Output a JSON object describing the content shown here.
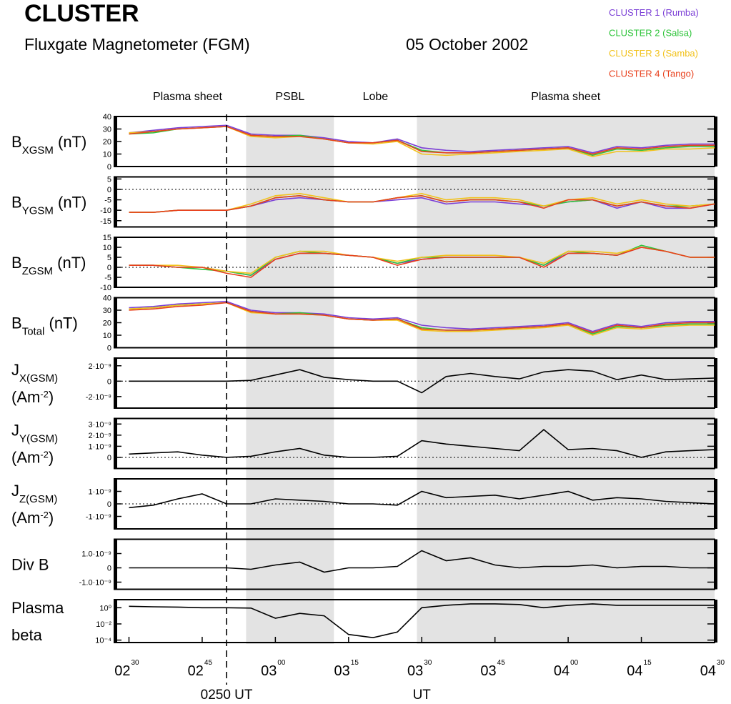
{
  "title": "CLUSTER",
  "subtitle": "Fluxgate Magnetometer (FGM)",
  "date": "05 October 2002",
  "x": [
    "02:30",
    "02:35",
    "02:40",
    "02:45",
    "02:50",
    "02:55",
    "03:00",
    "03:05",
    "03:10",
    "03:15",
    "03:20",
    "03:25",
    "03:30",
    "03:35",
    "03:40",
    "03:45",
    "03:50",
    "03:55",
    "04:00",
    "04:05",
    "04:10",
    "04:15",
    "04:20",
    "04:25",
    "04:30"
  ],
  "xlim": [
    "02:27",
    "04:30"
  ],
  "xticks": [
    {
      "value": "02:30",
      "label": [
        "02",
        "30"
      ]
    },
    {
      "value": "02:45",
      "label": [
        "02",
        "45"
      ]
    },
    {
      "value": "03:00",
      "label": [
        "03",
        "00"
      ]
    },
    {
      "value": "03:15",
      "label": [
        "03",
        "15"
      ]
    },
    {
      "value": "03:30",
      "label": [
        "03",
        "30"
      ]
    },
    {
      "value": "03:45",
      "label": [
        "03",
        "45"
      ]
    },
    {
      "value": "04:00",
      "label": [
        "04",
        "00"
      ]
    },
    {
      "value": "04:15",
      "label": [
        "04",
        "15"
      ]
    },
    {
      "value": "04:30",
      "label": [
        "04",
        "30"
      ]
    }
  ],
  "regions": [
    {
      "label": "Plasma sheet",
      "from": "02:30",
      "to": "02:54",
      "shaded": false
    },
    {
      "label": "PSBL",
      "from": "02:54",
      "to": "03:12",
      "shaded": true
    },
    {
      "label": "Lobe",
      "from": "03:12",
      "to": "03:29",
      "shaded": false
    },
    {
      "label": "Plasma sheet",
      "from": "03:29",
      "to": "04:30",
      "shaded": true
    }
  ],
  "marker": {
    "x": "02:50",
    "label": "0250 UT"
  },
  "ut_marker": {
    "x": "03:30",
    "label": "UT"
  },
  "chart_data": [
    {
      "type": "line",
      "ylabel": [
        [
          {
            "text": "B"
          },
          {
            "text": "XGSM",
            "shift": "sub"
          },
          {
            "text": " (nT)"
          }
        ]
      ],
      "ylim": [
        0,
        40
      ],
      "yticks": [
        0,
        10,
        20,
        30,
        40
      ],
      "zero_line": false,
      "log": false,
      "series": [
        {
          "name": "CLUSTER 1 (Rumba)",
          "color": "#7b3fd6",
          "values": [
            27,
            29,
            31,
            32,
            33,
            26,
            25,
            25,
            23,
            20,
            19,
            22,
            15,
            13,
            12,
            13,
            14,
            15,
            16,
            11,
            16,
            15,
            17,
            18,
            18
          ]
        },
        {
          "name": "CLUSTER 2 (Salsa)",
          "color": "#2ec43a",
          "values": [
            26,
            27,
            30,
            31,
            32,
            25,
            24,
            25,
            22,
            19,
            19,
            21,
            13,
            11,
            11,
            12,
            13,
            14,
            15,
            9,
            14,
            13,
            15,
            16,
            16
          ]
        },
        {
          "name": "CLUSTER 3 (Samba)",
          "color": "#f2c21b",
          "values": [
            27,
            28,
            30,
            31,
            32,
            24,
            23,
            24,
            22,
            19,
            18,
            20,
            10,
            9,
            10,
            11,
            12,
            13,
            14,
            8,
            12,
            12,
            14,
            14,
            15
          ]
        },
        {
          "name": "CLUSTER 4 (Tango)",
          "color": "#e8401c",
          "values": [
            26,
            28,
            30,
            31,
            32,
            25,
            24,
            24,
            22,
            19,
            19,
            21,
            12,
            11,
            11,
            12,
            13,
            14,
            15,
            10,
            15,
            14,
            16,
            17,
            17
          ]
        }
      ]
    },
    {
      "type": "line",
      "ylabel": [
        [
          {
            "text": "B"
          },
          {
            "text": "YGSM",
            "shift": "sub"
          },
          {
            "text": " (nT)"
          }
        ]
      ],
      "ylim": [
        -18,
        6
      ],
      "yticks": [
        -15,
        -10,
        -5,
        0,
        5
      ],
      "zero_line": true,
      "log": false,
      "series": [
        {
          "color": "#7b3fd6",
          "values": [
            -11,
            -11,
            -10,
            -10,
            -10,
            -8,
            -5,
            -4,
            -5,
            -6,
            -6,
            -5,
            -4,
            -7,
            -6,
            -6,
            -7,
            -8,
            -6,
            -5,
            -9,
            -6,
            -9,
            -9,
            -7
          ]
        },
        {
          "color": "#2ec43a",
          "values": [
            -11,
            -11,
            -10,
            -10,
            -10,
            -8,
            -4,
            -3,
            -5,
            -6,
            -6,
            -4,
            -3,
            -6,
            -5,
            -5,
            -6,
            -8,
            -6,
            -5,
            -8,
            -6,
            -8,
            -8,
            -7
          ]
        },
        {
          "color": "#f2c21b",
          "values": [
            -11,
            -11,
            -10,
            -10,
            -10,
            -7,
            -3,
            -2,
            -4,
            -6,
            -6,
            -4,
            -2,
            -5,
            -4,
            -4,
            -5,
            -8,
            -5,
            -4,
            -7,
            -5,
            -7,
            -8,
            -7
          ]
        },
        {
          "color": "#e8401c",
          "values": [
            -11,
            -11,
            -10,
            -10,
            -10,
            -8,
            -4,
            -3,
            -5,
            -6,
            -6,
            -4,
            -3,
            -6,
            -5,
            -5,
            -6,
            -9,
            -5,
            -5,
            -8,
            -6,
            -8,
            -9,
            -7
          ]
        }
      ]
    },
    {
      "type": "line",
      "ylabel": [
        [
          {
            "text": "B"
          },
          {
            "text": "ZGSM",
            "shift": "sub"
          },
          {
            "text": " (nT)"
          }
        ]
      ],
      "ylim": [
        -10,
        15
      ],
      "yticks": [
        -10,
        -5,
        0,
        5,
        10,
        15
      ],
      "zero_line": true,
      "log": false,
      "series": [
        {
          "color": "#7b3fd6",
          "values": [
            1,
            1,
            0,
            0,
            -2,
            -4,
            4,
            7,
            7,
            6,
            5,
            2,
            4,
            5,
            5,
            5,
            5,
            1,
            7,
            7,
            6,
            10,
            8,
            5,
            5
          ]
        },
        {
          "color": "#2ec43a",
          "values": [
            1,
            1,
            0,
            -1,
            -2,
            -4,
            5,
            8,
            7,
            6,
            5,
            2,
            5,
            5,
            5,
            5,
            5,
            1,
            8,
            7,
            6,
            11,
            8,
            5,
            5
          ]
        },
        {
          "color": "#f2c21b",
          "values": [
            1,
            1,
            1,
            0,
            -2,
            -3,
            5,
            8,
            8,
            6,
            5,
            3,
            5,
            6,
            6,
            6,
            5,
            2,
            8,
            8,
            7,
            10,
            8,
            5,
            5
          ]
        },
        {
          "color": "#e8401c",
          "values": [
            1,
            1,
            0,
            0,
            -3,
            -5,
            4,
            7,
            7,
            6,
            5,
            1,
            4,
            5,
            5,
            5,
            5,
            0,
            7,
            7,
            6,
            10,
            8,
            5,
            5
          ]
        }
      ]
    },
    {
      "type": "line",
      "ylabel": [
        [
          {
            "text": "B"
          },
          {
            "text": "Total",
            "shift": "sub"
          },
          {
            "text": " (nT)"
          }
        ]
      ],
      "ylim": [
        0,
        40
      ],
      "yticks": [
        0,
        10,
        20,
        30,
        40
      ],
      "zero_line": false,
      "log": false,
      "series": [
        {
          "color": "#7b3fd6",
          "values": [
            32,
            33,
            35,
            36,
            37,
            30,
            28,
            28,
            27,
            24,
            23,
            24,
            18,
            16,
            15,
            16,
            17,
            18,
            20,
            13,
            19,
            17,
            20,
            21,
            21
          ]
        },
        {
          "color": "#2ec43a",
          "values": [
            31,
            32,
            34,
            35,
            36,
            29,
            27,
            28,
            26,
            23,
            22,
            23,
            16,
            14,
            14,
            15,
            16,
            17,
            19,
            11,
            17,
            16,
            18,
            19,
            19
          ]
        },
        {
          "color": "#f2c21b",
          "values": [
            31,
            32,
            34,
            35,
            36,
            28,
            27,
            27,
            26,
            23,
            22,
            22,
            14,
            13,
            13,
            14,
            15,
            16,
            18,
            10,
            16,
            15,
            17,
            18,
            18
          ]
        },
        {
          "color": "#e8401c",
          "values": [
            30,
            31,
            33,
            34,
            36,
            29,
            27,
            27,
            26,
            23,
            22,
            23,
            15,
            14,
            14,
            15,
            16,
            17,
            19,
            12,
            18,
            16,
            19,
            20,
            20
          ]
        }
      ]
    },
    {
      "type": "line",
      "ylabel": [
        [
          {
            "text": "J"
          },
          {
            "text": "X(GSM)",
            "shift": "sub"
          }
        ],
        [
          {
            "text": "(Am"
          },
          {
            "text": "-2",
            "shift": "super"
          },
          {
            "text": ")"
          }
        ]
      ],
      "ylim": [
        -3.5e-09,
        3e-09
      ],
      "yticks": [
        {
          "value": -2e-09,
          "label": "-2·10⁻⁹"
        },
        0,
        {
          "value": 2e-09,
          "label": "2·10⁻⁹"
        }
      ],
      "zero_line": true,
      "log": false,
      "series": [
        {
          "color": "#000000",
          "values": [
            0,
            0,
            0,
            0,
            0,
            1e-10,
            8e-10,
            1.5e-09,
            5e-10,
            2e-10,
            0,
            0,
            -1.5e-09,
            6e-10,
            1e-09,
            6e-10,
            3e-10,
            1.2e-09,
            1.5e-09,
            1.3e-09,
            2e-10,
            8e-10,
            2e-10,
            3e-10,
            4e-10
          ]
        }
      ]
    },
    {
      "type": "line",
      "ylabel": [
        [
          {
            "text": "J"
          },
          {
            "text": "Y(GSM)",
            "shift": "sub"
          }
        ],
        [
          {
            "text": "(Am"
          },
          {
            "text": "-2",
            "shift": "super"
          },
          {
            "text": ")"
          }
        ]
      ],
      "ylim": [
        -1e-09,
        3.5e-09
      ],
      "yticks": [
        0,
        {
          "value": 1e-09,
          "label": "1·10⁻⁹"
        },
        {
          "value": 2e-09,
          "label": "2·10⁻⁹"
        },
        {
          "value": 3e-09,
          "label": "3·10⁻⁹"
        }
      ],
      "zero_line": true,
      "log": false,
      "series": [
        {
          "color": "#000000",
          "values": [
            3e-10,
            4e-10,
            5e-10,
            2e-10,
            0,
            1e-10,
            5e-10,
            8e-10,
            2e-10,
            0,
            0,
            1e-10,
            1.5e-09,
            1.2e-09,
            1e-09,
            8e-10,
            6e-10,
            2.5e-09,
            7e-10,
            8e-10,
            6e-10,
            0,
            5e-10,
            6e-10,
            7e-10
          ]
        }
      ]
    },
    {
      "type": "line",
      "ylabel": [
        [
          {
            "text": "J"
          },
          {
            "text": "Z(GSM)",
            "shift": "sub"
          }
        ],
        [
          {
            "text": "(Am"
          },
          {
            "text": "-2",
            "shift": "super"
          },
          {
            "text": ")"
          }
        ]
      ],
      "ylim": [
        -2e-09,
        2e-09
      ],
      "yticks": [
        {
          "value": -1e-09,
          "label": "-1·10⁻⁹"
        },
        0,
        {
          "value": 1e-09,
          "label": "1·10⁻⁹"
        }
      ],
      "zero_line": true,
      "log": false,
      "series": [
        {
          "color": "#000000",
          "values": [
            -3e-10,
            -1e-10,
            4e-10,
            8e-10,
            0,
            0,
            4e-10,
            3e-10,
            2e-10,
            0,
            0,
            -1e-10,
            1e-09,
            5e-10,
            6e-10,
            7e-10,
            4e-10,
            7e-10,
            1e-09,
            3e-10,
            5e-10,
            4e-10,
            2e-10,
            1e-10,
            0
          ]
        }
      ]
    },
    {
      "type": "line",
      "ylabel": [
        [
          {
            "text": "Div B"
          }
        ]
      ],
      "ylim": [
        -1.5e-09,
        2e-09
      ],
      "yticks": [
        {
          "value": -1e-09,
          "label": "-1.0·10⁻⁹"
        },
        0,
        {
          "value": 1e-09,
          "label": "1.0·10⁻⁹"
        }
      ],
      "zero_line": false,
      "log": false,
      "series": [
        {
          "color": "#000000",
          "values": [
            0,
            0,
            0,
            0,
            0,
            -1e-10,
            2e-10,
            4e-10,
            -3e-10,
            0,
            0,
            1e-10,
            1.2e-09,
            5e-10,
            7e-10,
            2e-10,
            0,
            1e-10,
            1e-10,
            2e-10,
            0,
            1e-10,
            1e-10,
            0,
            0
          ]
        }
      ]
    },
    {
      "type": "line",
      "ylabel": [
        [
          {
            "text": "Plasma"
          }
        ],
        [
          {
            "text": "beta"
          }
        ]
      ],
      "ylim": [
        5e-05,
        10
      ],
      "yticks": [
        {
          "value": 0.0001,
          "label": "10⁻⁴"
        },
        {
          "value": 0.01,
          "label": "10⁻²"
        },
        {
          "value": 1,
          "label": "10⁰"
        }
      ],
      "zero_line": false,
      "log": true,
      "series": [
        {
          "color": "#000000",
          "values": [
            1.5,
            1.3,
            1.2,
            1,
            1,
            0.9,
            0.05,
            0.2,
            0.1,
            0.0005,
            0.0002,
            0.001,
            1,
            2,
            3,
            3,
            2.5,
            1,
            2,
            3,
            2,
            2,
            2,
            2,
            2
          ]
        }
      ]
    }
  ]
}
